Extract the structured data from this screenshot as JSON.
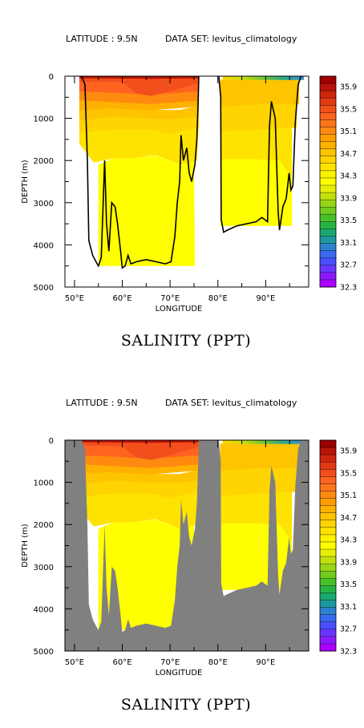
{
  "chart_data": [
    {
      "type": "heatmap",
      "header_left": "LATITUDE : 9.5N",
      "header_right": "DATA SET: levitus_climatology",
      "title": "SALINITY (PPT)",
      "xlabel": "LONGITUDE",
      "ylabel": "DEPTH (m)",
      "xlim": [
        48,
        99
      ],
      "ylim": [
        0,
        5000
      ],
      "y_inverted": true,
      "x_ticks": [
        "50°E",
        "60°E",
        "70°E",
        "80°E",
        "90°E"
      ],
      "y_ticks": [
        "0",
        "1000",
        "2000",
        "3000",
        "4000",
        "5000"
      ],
      "land_fill": false,
      "colorbar_labels": [
        "35.9",
        "35.5",
        "35.1",
        "34.7",
        "34.3",
        "33.9",
        "33.5",
        "33.1",
        "32.7",
        "32.3"
      ]
    },
    {
      "type": "heatmap",
      "header_left": "LATITUDE : 9.5N",
      "header_right": "DATA SET: levitus_climatology",
      "title": "SALINITY (PPT)",
      "xlabel": "LONGITUDE",
      "ylabel": "DEPTH (m)",
      "xlim": [
        48,
        99
      ],
      "ylim": [
        0,
        5000
      ],
      "y_inverted": true,
      "x_ticks": [
        "50°E",
        "60°E",
        "70°E",
        "80°E",
        "90°E"
      ],
      "y_ticks": [
        "0",
        "1000",
        "2000",
        "3000",
        "4000",
        "5000"
      ],
      "land_fill": true,
      "land_color": "#808080",
      "colorbar_labels": [
        "35.9",
        "35.5",
        "35.1",
        "34.7",
        "34.3",
        "33.9",
        "33.5",
        "33.1",
        "32.7",
        "32.3"
      ]
    }
  ],
  "colors": {
    "colorbar": [
      "#ad00ff",
      "#8c1aff",
      "#6a35ff",
      "#4a50ff",
      "#3a6aef",
      "#2c82cf",
      "#1f99a0",
      "#1aa872",
      "#26b447",
      "#48c02a",
      "#70cc1f",
      "#99d616",
      "#c2e10e",
      "#e6ef08",
      "#ffff00",
      "#fff200",
      "#ffe300",
      "#ffd400",
      "#ffc400",
      "#ffb100",
      "#ff9e00",
      "#ff8a10",
      "#ff761a",
      "#ff6320",
      "#f24f1c",
      "#e23a14",
      "#cf260e",
      "#b91208",
      "#9e0000"
    ],
    "levels": {
      "s1": "#ffff00",
      "s2": "#fff200",
      "s3": "#ffe300",
      "s4": "#ffd400",
      "s5": "#ffc400",
      "s6": "#ffb100",
      "s7": "#ff9e00",
      "s8": "#ff8a10",
      "s9": "#ff761a",
      "s10": "#ff6320",
      "s11": "#f24f1c",
      "s12": "#d8301a",
      "s13": "#b91208",
      "s14": "#9e0000"
    },
    "surface_gradient": [
      "#ffd400",
      "#c8e010",
      "#6cc638",
      "#2da88a",
      "#3a8fd8"
    ]
  }
}
